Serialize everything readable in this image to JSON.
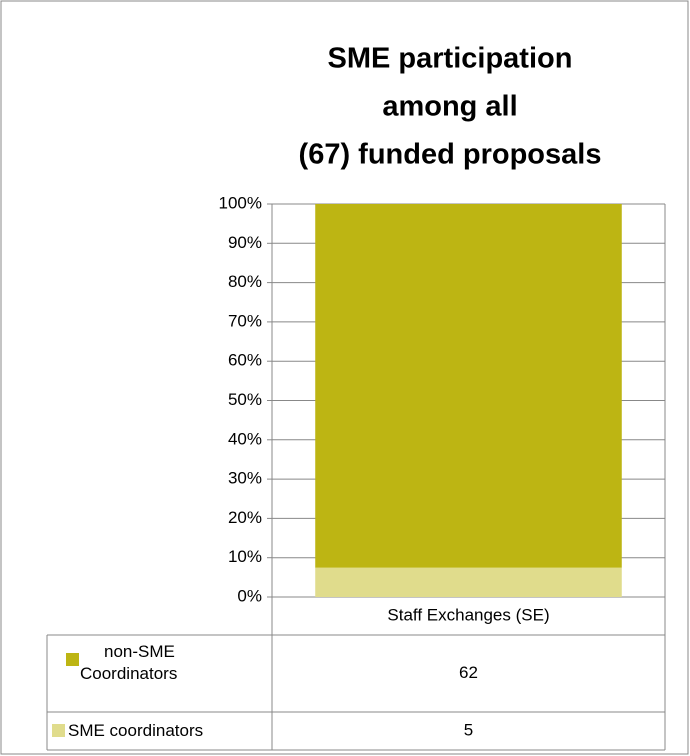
{
  "chart_data": {
    "type": "bar",
    "stacking": "percent",
    "title": [
      "SME participation",
      "among all",
      "(67) funded proposals"
    ],
    "categories": [
      "Staff Exchanges (SE)"
    ],
    "series": [
      {
        "name": "non-SME Coordinators",
        "color": "#bdb513",
        "values": [
          62
        ]
      },
      {
        "name": "SME coordinators",
        "color": "#e0dc8c",
        "values": [
          5
        ]
      }
    ],
    "ylim": [
      0,
      100
    ],
    "yticks": [
      {
        "value": 0,
        "label": "0%"
      },
      {
        "value": 10,
        "label": "10%"
      },
      {
        "value": 20,
        "label": "20%"
      },
      {
        "value": 30,
        "label": "30%"
      },
      {
        "value": 40,
        "label": "40%"
      },
      {
        "value": 50,
        "label": "50%"
      },
      {
        "value": 60,
        "label": "60%"
      },
      {
        "value": 70,
        "label": "70%"
      },
      {
        "value": 80,
        "label": "80%"
      },
      {
        "value": 90,
        "label": "90%"
      },
      {
        "value": 100,
        "label": "100%"
      }
    ],
    "grid": true,
    "data_table": true
  }
}
